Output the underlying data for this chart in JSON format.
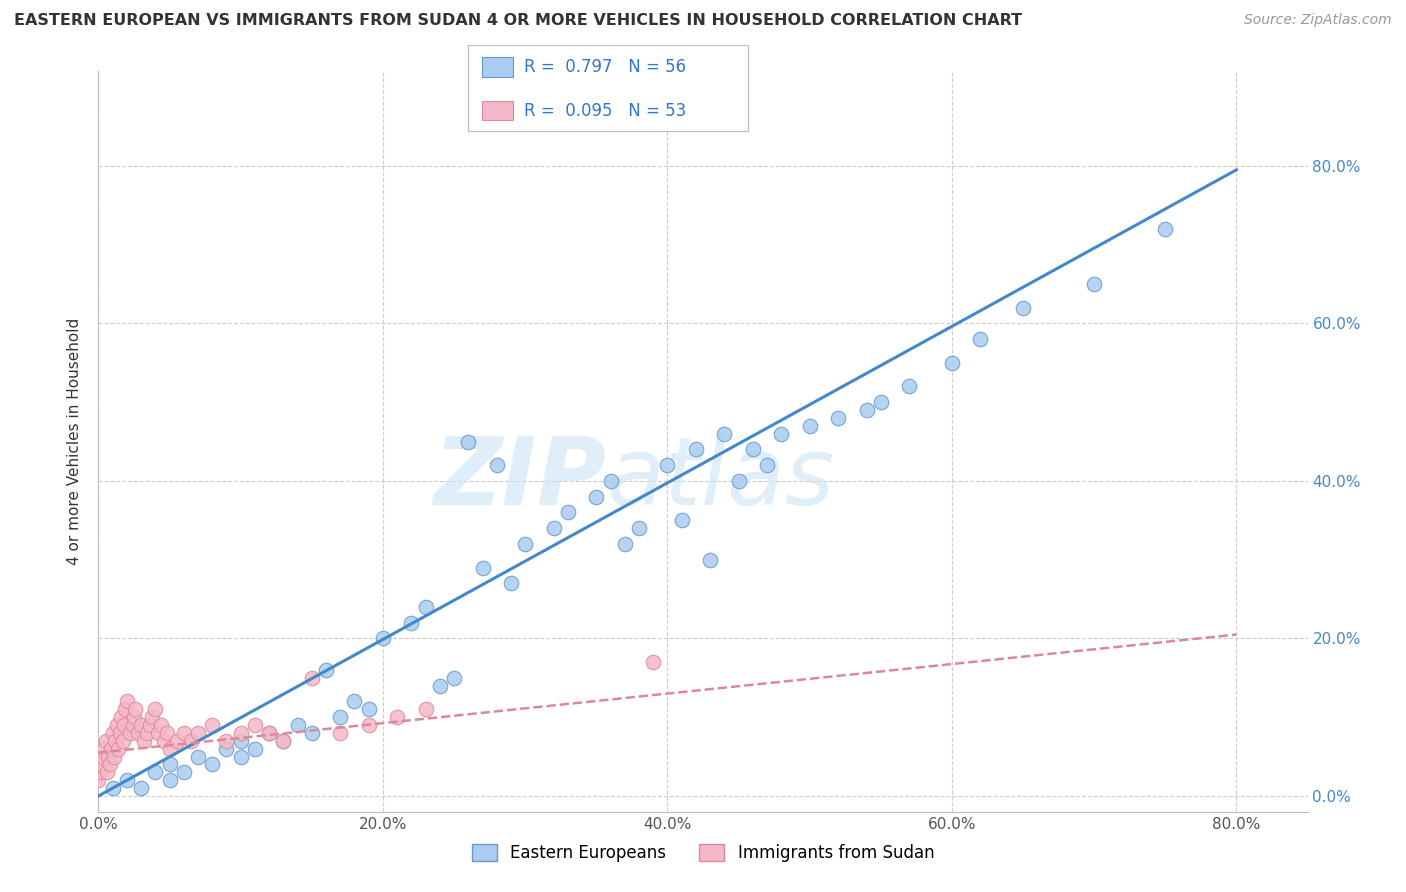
{
  "title": "EASTERN EUROPEAN VS IMMIGRANTS FROM SUDAN 4 OR MORE VEHICLES IN HOUSEHOLD CORRELATION CHART",
  "source": "Source: ZipAtlas.com",
  "ylabel": "4 or more Vehicles in Household",
  "xlim": [
    0.0,
    0.85
  ],
  "ylim": [
    -0.02,
    0.92
  ],
  "R_eastern": 0.797,
  "N_eastern": 56,
  "R_sudan": 0.095,
  "N_sudan": 53,
  "eastern_color": "#aaccf0",
  "eastern_edge": "#6699cc",
  "sudan_color": "#f5b8c8",
  "sudan_edge": "#dd8899",
  "eastern_line_color": "#4488cc",
  "sudan_line_color": "#dd8899",
  "legend_labels": [
    "Eastern Europeans",
    "Immigrants from Sudan"
  ],
  "eastern_x": [
    0.01,
    0.02,
    0.03,
    0.04,
    0.05,
    0.05,
    0.06,
    0.07,
    0.08,
    0.09,
    0.1,
    0.1,
    0.11,
    0.12,
    0.13,
    0.14,
    0.15,
    0.16,
    0.17,
    0.18,
    0.19,
    0.2,
    0.22,
    0.23,
    0.24,
    0.25,
    0.26,
    0.27,
    0.28,
    0.29,
    0.3,
    0.32,
    0.33,
    0.35,
    0.36,
    0.37,
    0.38,
    0.4,
    0.41,
    0.42,
    0.43,
    0.44,
    0.45,
    0.46,
    0.47,
    0.48,
    0.5,
    0.52,
    0.54,
    0.55,
    0.57,
    0.6,
    0.62,
    0.65,
    0.7,
    0.75
  ],
  "eastern_y": [
    0.01,
    0.02,
    0.01,
    0.03,
    0.02,
    0.04,
    0.03,
    0.05,
    0.04,
    0.06,
    0.05,
    0.07,
    0.06,
    0.08,
    0.07,
    0.09,
    0.08,
    0.16,
    0.1,
    0.12,
    0.11,
    0.2,
    0.22,
    0.24,
    0.14,
    0.15,
    0.45,
    0.29,
    0.42,
    0.27,
    0.32,
    0.34,
    0.36,
    0.38,
    0.4,
    0.32,
    0.34,
    0.42,
    0.35,
    0.44,
    0.3,
    0.46,
    0.4,
    0.44,
    0.42,
    0.46,
    0.47,
    0.48,
    0.49,
    0.5,
    0.52,
    0.55,
    0.58,
    0.62,
    0.65,
    0.72
  ],
  "sudan_x": [
    0.0,
    0.001,
    0.002,
    0.003,
    0.004,
    0.005,
    0.006,
    0.007,
    0.008,
    0.009,
    0.01,
    0.011,
    0.012,
    0.013,
    0.014,
    0.015,
    0.016,
    0.017,
    0.018,
    0.019,
    0.02,
    0.022,
    0.024,
    0.025,
    0.026,
    0.028,
    0.03,
    0.032,
    0.034,
    0.036,
    0.038,
    0.04,
    0.042,
    0.044,
    0.046,
    0.048,
    0.05,
    0.055,
    0.06,
    0.065,
    0.07,
    0.08,
    0.09,
    0.1,
    0.11,
    0.12,
    0.13,
    0.15,
    0.17,
    0.19,
    0.21,
    0.23,
    0.39
  ],
  "sudan_y": [
    0.02,
    0.03,
    0.04,
    0.05,
    0.06,
    0.07,
    0.03,
    0.05,
    0.04,
    0.06,
    0.08,
    0.05,
    0.07,
    0.09,
    0.06,
    0.08,
    0.1,
    0.07,
    0.09,
    0.11,
    0.12,
    0.08,
    0.09,
    0.1,
    0.11,
    0.08,
    0.09,
    0.07,
    0.08,
    0.09,
    0.1,
    0.11,
    0.08,
    0.09,
    0.07,
    0.08,
    0.06,
    0.07,
    0.08,
    0.07,
    0.08,
    0.09,
    0.07,
    0.08,
    0.09,
    0.08,
    0.07,
    0.15,
    0.08,
    0.09,
    0.1,
    0.11,
    0.17
  ],
  "eastern_line_x": [
    0.0,
    0.8
  ],
  "eastern_line_y": [
    0.0,
    0.795
  ],
  "sudan_line_x": [
    0.0,
    0.8
  ],
  "sudan_line_y": [
    0.055,
    0.205
  ],
  "watermark_zip": "ZIP",
  "watermark_atlas": "atlas",
  "ytick_positions": [
    0.0,
    0.2,
    0.4,
    0.6,
    0.8
  ],
  "ytick_labels_right": [
    "0.0%",
    "20.0%",
    "40.0%",
    "60.0%",
    "80.0%"
  ],
  "xtick_positions": [
    0.0,
    0.2,
    0.4,
    0.6,
    0.8
  ],
  "xtick_labels": [
    "0.0%",
    "20.0%",
    "40.0%",
    "60.0%",
    "80.0%"
  ]
}
